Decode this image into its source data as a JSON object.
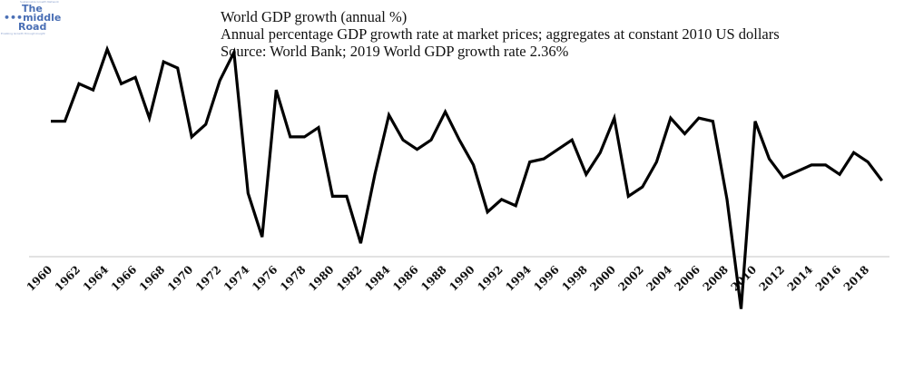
{
  "logo": {
    "tagline": "Sustainable Growth Network",
    "line1": "The",
    "line2": "•••middle",
    "line3": "Road",
    "subline": "Enabling Growth through Insight",
    "color": "#4a6fb5"
  },
  "chart_data": {
    "type": "line",
    "title": "World GDP growth (annual %)",
    "subtitle": "Annual percentage GDP growth rate at market prices; aggregates at constant 2010 US dollars",
    "source": "Source: World Bank; 2019 World GDP growth rate 2.36%",
    "xlabel": "",
    "ylabel": "",
    "x": [
      1960,
      1961,
      1962,
      1963,
      1964,
      1965,
      1966,
      1967,
      1968,
      1969,
      1970,
      1971,
      1972,
      1973,
      1974,
      1975,
      1976,
      1977,
      1978,
      1979,
      1980,
      1981,
      1982,
      1983,
      1984,
      1985,
      1986,
      1987,
      1988,
      1989,
      1990,
      1991,
      1992,
      1993,
      1994,
      1995,
      1996,
      1997,
      1998,
      1999,
      2000,
      2001,
      2002,
      2003,
      2004,
      2005,
      2006,
      2007,
      2008,
      2009,
      2010,
      2011,
      2012,
      2013,
      2014,
      2015,
      2016,
      2017,
      2018,
      2019
    ],
    "series": [
      {
        "name": "World GDP growth (annual %)",
        "color": "#000000",
        "values": [
          4.3,
          4.3,
          5.5,
          5.3,
          6.6,
          5.5,
          5.7,
          4.4,
          6.2,
          6.0,
          3.8,
          4.2,
          5.6,
          6.5,
          2.0,
          0.6,
          5.3,
          3.8,
          3.8,
          4.1,
          1.9,
          1.9,
          0.4,
          2.6,
          4.5,
          3.7,
          3.4,
          3.7,
          4.6,
          3.7,
          2.9,
          1.4,
          1.8,
          1.6,
          3.0,
          3.1,
          3.4,
          3.7,
          2.6,
          3.3,
          4.4,
          1.9,
          2.2,
          3.0,
          4.4,
          3.9,
          4.4,
          4.3,
          1.8,
          -1.7,
          4.3,
          3.1,
          2.5,
          2.7,
          2.9,
          2.9,
          2.6,
          3.3,
          3.0,
          2.4
        ]
      }
    ],
    "tick_labels": [
      "1960",
      "1962",
      "1964",
      "1966",
      "1968",
      "1970",
      "1972",
      "1974",
      "1976",
      "1978",
      "1980",
      "1982",
      "1984",
      "1986",
      "1988",
      "1990",
      "1992",
      "1994",
      "1996",
      "1998",
      "2000",
      "2002",
      "2004",
      "2006",
      "2008",
      "2010",
      "2012",
      "2014",
      "2016",
      "2018"
    ],
    "ylim": [
      -1.7,
      6.6
    ],
    "grid": false,
    "legend": "none",
    "baseline_color": "#d9d9d9"
  }
}
